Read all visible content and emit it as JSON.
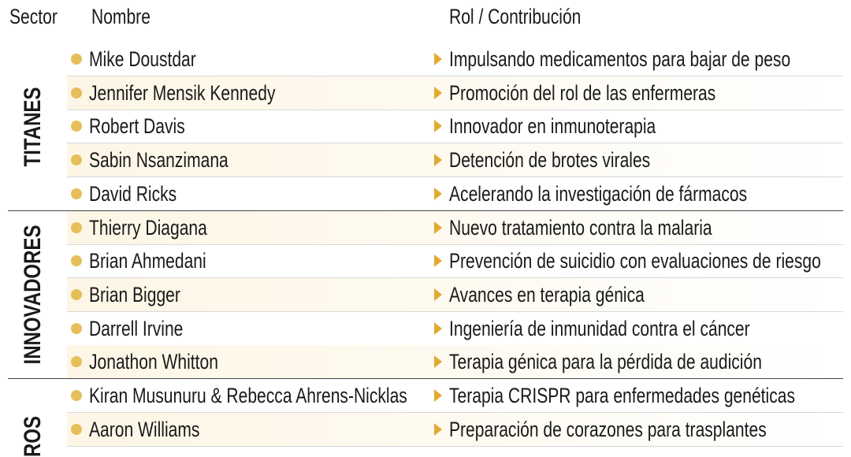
{
  "header": {
    "sector": "Sector",
    "name": "Nombre",
    "role": "Rol / Contribución"
  },
  "groups": [
    {
      "sector": "TITANES",
      "rows": [
        {
          "name": "Mike Doustdar",
          "role": "Impulsando medicamentos para bajar de peso"
        },
        {
          "name": "Jennifer Mensik Kennedy",
          "role": "Promoción del rol de las enfermeras"
        },
        {
          "name": "Robert Davis",
          "role": "Innovador en inmunoterapia"
        },
        {
          "name": "Sabin Nsanzimana",
          "role": "Detención de brotes virales"
        },
        {
          "name": "David Ricks",
          "role": "Acelerando la investigación de fármacos"
        }
      ]
    },
    {
      "sector": "INNOVADORES",
      "rows": [
        {
          "name": "Thierry Diagana",
          "role": "Nuevo tratamiento contra la malaria"
        },
        {
          "name": "Brian Ahmedani",
          "role": "Prevención de suicidio con evaluaciones de riesgo"
        },
        {
          "name": "Brian Bigger",
          "role": "Avances en terapia génica"
        },
        {
          "name": "Darrell Irvine",
          "role": "Ingeniería de inmunidad contra el cáncer"
        },
        {
          "name": "Jonathon Whitton",
          "role": "Terapia génica para la pérdida de audición"
        }
      ]
    },
    {
      "sector": "ROS",
      "rows": [
        {
          "name": "Kiran Musunuru & Rebecca Ahrens-Nicklas",
          "role": "Terapia CRISPR para enfermedades genéticas"
        },
        {
          "name": "Aaron Williams",
          "role": "Preparación de corazones para trasplantes"
        }
      ]
    }
  ]
}
